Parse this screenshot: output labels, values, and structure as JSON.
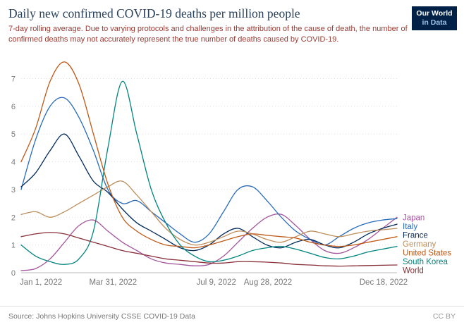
{
  "header": {
    "title": "Daily new confirmed COVID-19 deaths per million people",
    "subtitle": "7-day rolling average. Due to varying protocols and challenges in the attribution of the cause of death, the number of confirmed deaths may not accurately represent the true number of deaths caused by COVID-19.",
    "logo": {
      "line1": "Our World",
      "line2": "in Data"
    }
  },
  "footer": {
    "source": "Source: Johns Hopkins University CSSE COVID-19 Data",
    "license": "CC BY"
  },
  "colors": {
    "title": "#29415a",
    "subtitle": "#9a3a33",
    "logo_bg": "#002147",
    "grid": "#dddddd",
    "axis": "#bbbbbb",
    "tick_text": "#777777"
  },
  "chart_data": {
    "type": "line",
    "title": "Daily new confirmed COVID-19 deaths per million people",
    "xlabel": "",
    "ylabel": "",
    "x_unit": "days since Jan 1, 2022",
    "x_domain_days": [
      0,
      364
    ],
    "ylim": [
      0,
      7.8
    ],
    "y_ticks": [
      0,
      1,
      2,
      3,
      4,
      5,
      6,
      7
    ],
    "x_ticks": [
      {
        "day": 0,
        "label": "Jan 1, 2022"
      },
      {
        "day": 89,
        "label": "Mar 31, 2022"
      },
      {
        "day": 189,
        "label": "Jul 9, 2022"
      },
      {
        "day": 239,
        "label": "Aug 28, 2022"
      },
      {
        "day": 351,
        "label": "Dec 18, 2022"
      }
    ],
    "grid": true,
    "legend_position": "right",
    "x_days": [
      0,
      14,
      28,
      42,
      56,
      70,
      84,
      98,
      112,
      126,
      140,
      154,
      168,
      182,
      196,
      210,
      224,
      238,
      252,
      266,
      280,
      294,
      308,
      322,
      336,
      350,
      364
    ],
    "series": [
      {
        "name": "Japan",
        "color": "#a2559c",
        "values": [
          0.08,
          0.15,
          0.5,
          1.1,
          1.7,
          1.9,
          1.5,
          1.1,
          0.8,
          0.5,
          0.35,
          0.3,
          0.25,
          0.3,
          0.6,
          1.1,
          1.6,
          2.0,
          2.1,
          1.7,
          1.2,
          0.8,
          0.7,
          0.9,
          1.2,
          1.6,
          2.0
        ]
      },
      {
        "name": "Italy",
        "color": "#286bbb",
        "values": [
          3.0,
          4.8,
          6.0,
          6.3,
          5.6,
          4.4,
          3.0,
          2.5,
          2.6,
          2.2,
          1.8,
          1.4,
          1.1,
          1.4,
          2.2,
          3.0,
          3.1,
          2.6,
          2.0,
          1.5,
          1.2,
          1.0,
          1.3,
          1.6,
          1.8,
          1.9,
          1.95
        ]
      },
      {
        "name": "France",
        "color": "#00295b",
        "values": [
          3.1,
          3.6,
          4.4,
          5.0,
          4.2,
          3.3,
          2.9,
          2.3,
          1.8,
          1.5,
          1.2,
          0.9,
          0.8,
          1.0,
          1.4,
          1.6,
          1.3,
          1.0,
          0.9,
          1.1,
          1.2,
          1.0,
          0.9,
          1.1,
          1.4,
          1.6,
          1.75
        ]
      },
      {
        "name": "Germany",
        "color": "#bc8e5a",
        "values": [
          2.1,
          2.2,
          2.0,
          2.2,
          2.5,
          2.8,
          3.1,
          3.3,
          2.8,
          2.2,
          1.6,
          1.2,
          1.0,
          1.1,
          1.3,
          1.5,
          1.4,
          1.2,
          1.1,
          1.3,
          1.5,
          1.4,
          1.3,
          1.4,
          1.5,
          1.55,
          1.6
        ]
      },
      {
        "name": "United States",
        "color": "#c05917",
        "values": [
          4.0,
          5.2,
          6.9,
          7.6,
          6.8,
          5.0,
          3.2,
          2.0,
          1.5,
          1.2,
          1.0,
          0.95,
          0.9,
          1.0,
          1.15,
          1.3,
          1.4,
          1.35,
          1.3,
          1.25,
          1.1,
          1.0,
          0.95,
          1.0,
          1.1,
          1.2,
          1.3
        ]
      },
      {
        "name": "South Korea",
        "color": "#00847e",
        "values": [
          1.0,
          0.6,
          0.4,
          0.3,
          0.5,
          1.5,
          4.5,
          6.9,
          5.0,
          3.0,
          1.8,
          1.0,
          0.6,
          0.4,
          0.45,
          0.6,
          0.8,
          0.9,
          0.95,
          0.85,
          0.7,
          0.55,
          0.5,
          0.6,
          0.75,
          0.85,
          0.95
        ]
      },
      {
        "name": "World",
        "color": "#883039",
        "values": [
          1.3,
          1.4,
          1.45,
          1.4,
          1.25,
          1.1,
          0.95,
          0.8,
          0.7,
          0.6,
          0.5,
          0.45,
          0.4,
          0.35,
          0.35,
          0.4,
          0.4,
          0.38,
          0.35,
          0.3,
          0.28,
          0.25,
          0.24,
          0.25,
          0.26,
          0.27,
          0.28
        ]
      }
    ]
  }
}
